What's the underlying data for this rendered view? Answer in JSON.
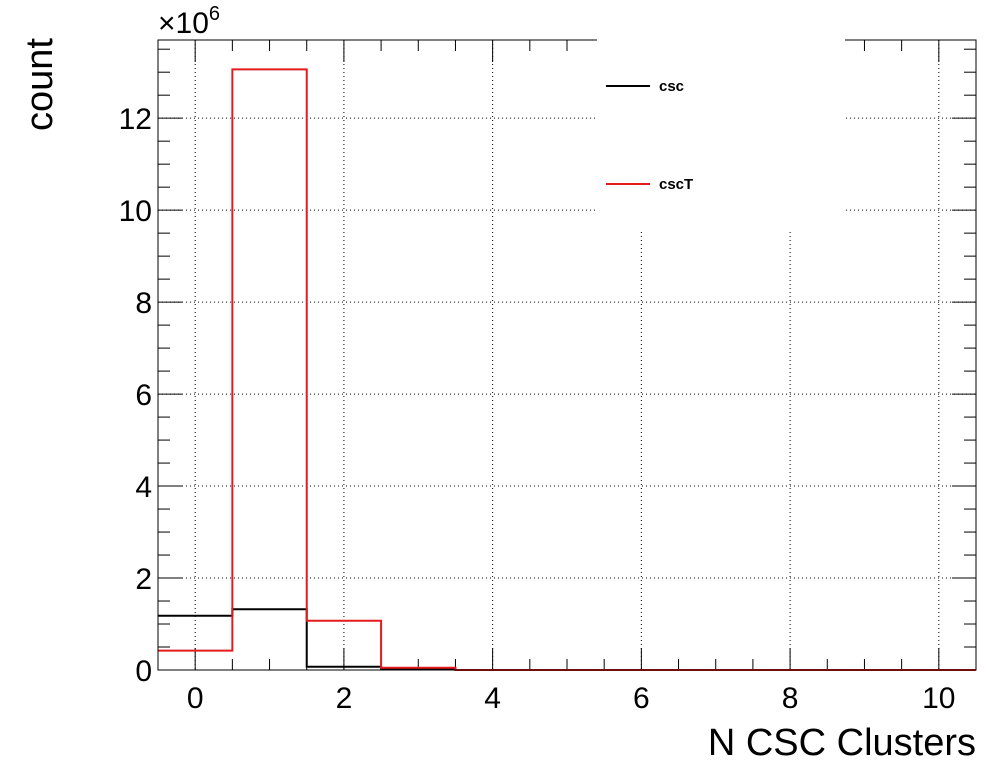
{
  "chart_data": {
    "type": "histogram",
    "xlabel": "N CSC Clusters",
    "ylabel": "count",
    "y_multiplier_base": "×10",
    "y_multiplier_exp": "6",
    "xlim": [
      -0.5,
      10.5
    ],
    "ylim": [
      0,
      13.7
    ],
    "y_unit_scale": 1000000,
    "x_ticks": [
      0,
      2,
      4,
      6,
      8,
      10
    ],
    "y_ticks": [
      0,
      2,
      4,
      6,
      8,
      10,
      12
    ],
    "grid": true,
    "legend_position": "top-right",
    "bin_edges": [
      -0.5,
      0.5,
      1.5,
      2.5,
      3.5,
      4.5,
      5.5,
      6.5,
      7.5,
      8.5,
      9.5,
      10.5
    ],
    "series": [
      {
        "name": "csc",
        "color": "#000000",
        "values": [
          1.18,
          1.32,
          0.07,
          0.03,
          0,
          0,
          0,
          0,
          0,
          0,
          0
        ]
      },
      {
        "name": "cscT",
        "color": "#e41a1c",
        "values": [
          0.42,
          13.06,
          1.07,
          0.05,
          0,
          0,
          0,
          0,
          0,
          0,
          0
        ]
      }
    ]
  }
}
